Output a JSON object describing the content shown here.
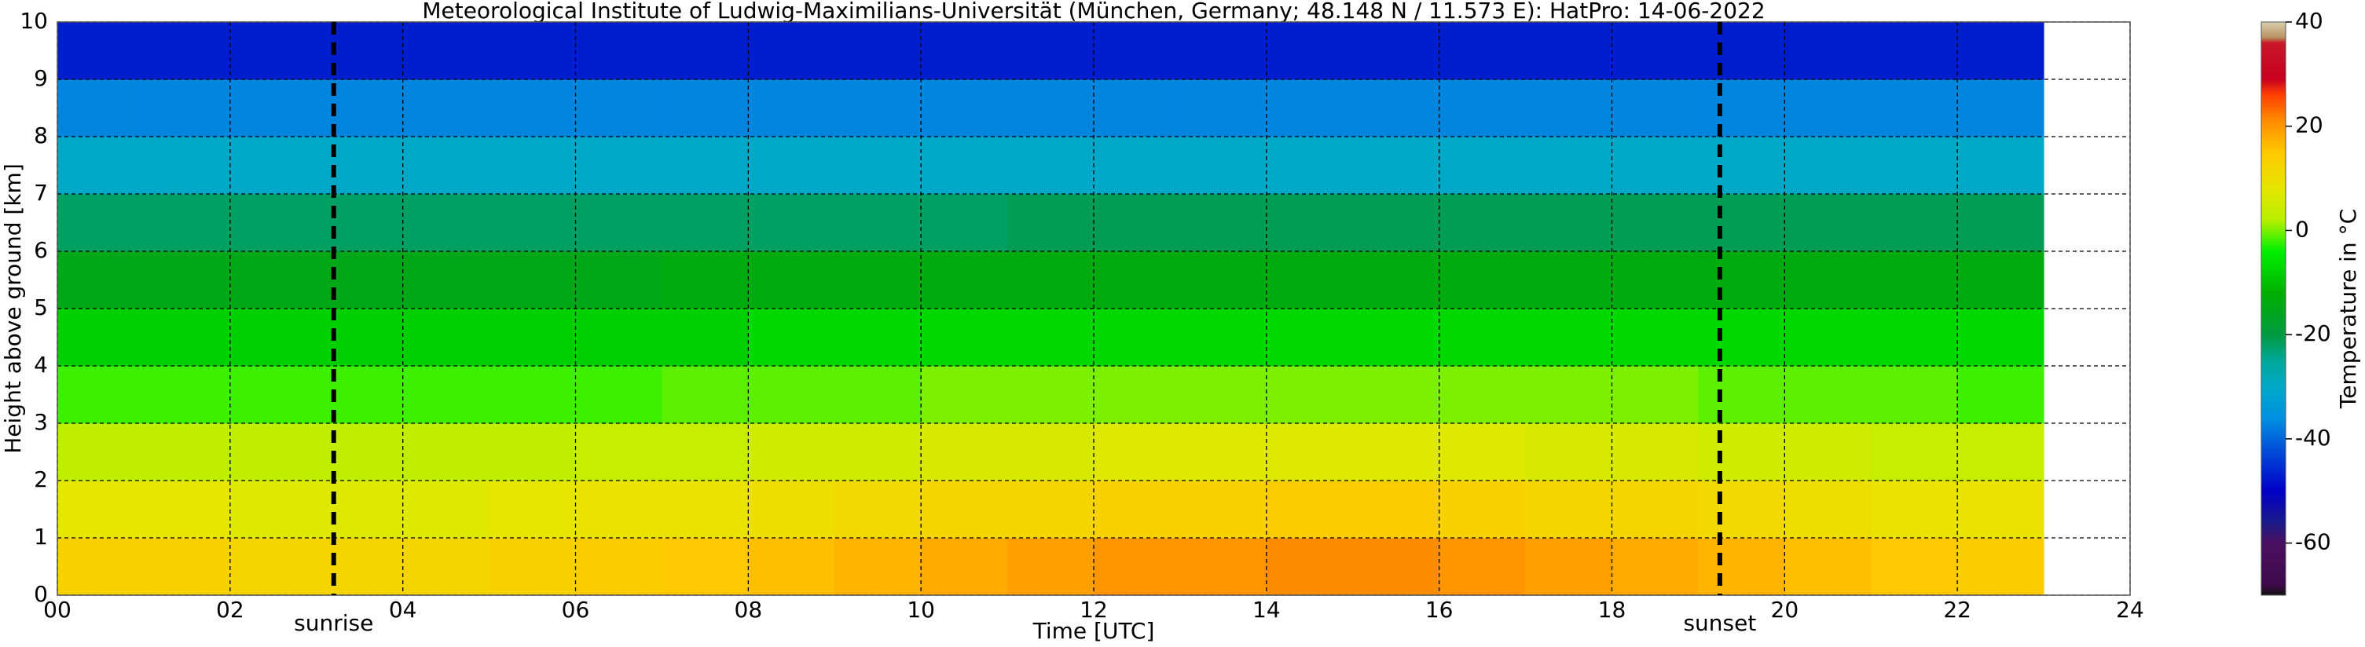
{
  "chart_data": {
    "type": "heatmap",
    "title": "Meteorological Institute of Ludwig-Maximilians-Universität (München, Germany; 48.148 N / 11.573 E):    HatPro: 14-06-2022",
    "x_label": "Time [UTC]",
    "y_label": "Height above ground [km]",
    "colorbar_label": "Temperature in °C",
    "x_edges": [
      0,
      1,
      2,
      3,
      4,
      5,
      6,
      7,
      8,
      9,
      10,
      11,
      12,
      13,
      14,
      15,
      16,
      17,
      18,
      19,
      20,
      21,
      22,
      23
    ],
    "y_edges": [
      0,
      1,
      2,
      3,
      4,
      5,
      6,
      7,
      8,
      9,
      10
    ],
    "z": [
      [
        13,
        13,
        12,
        12,
        12,
        13,
        14,
        15,
        16,
        17,
        18,
        19,
        20,
        20,
        21,
        21,
        20,
        19,
        18,
        17,
        16,
        15,
        14
      ],
      [
        8,
        8,
        7,
        7,
        7,
        8,
        9,
        9,
        10,
        11,
        12,
        12,
        13,
        13,
        14,
        14,
        13,
        12,
        12,
        11,
        10,
        9,
        9
      ],
      [
        3,
        3,
        3,
        3,
        3,
        3,
        4,
        4,
        5,
        5,
        6,
        6,
        7,
        7,
        7,
        7,
        7,
        6,
        6,
        5,
        5,
        4,
        4
      ],
      [
        -2,
        -2,
        -2,
        -2,
        -2,
        -2,
        -2,
        -1,
        -1,
        -1,
        0,
        0,
        0,
        0,
        0,
        0,
        0,
        0,
        0,
        -1,
        -1,
        -1,
        -2
      ],
      [
        -8,
        -8,
        -8,
        -8,
        -8,
        -8,
        -8,
        -8,
        -7,
        -7,
        -7,
        -7,
        -7,
        -7,
        -7,
        -7,
        -7,
        -7,
        -7,
        -7,
        -7,
        -7,
        -7
      ],
      [
        -15,
        -15,
        -15,
        -15,
        -15,
        -15,
        -15,
        -14,
        -14,
        -14,
        -14,
        -14,
        -14,
        -14,
        -14,
        -14,
        -14,
        -14,
        -14,
        -14,
        -14,
        -14,
        -14
      ],
      [
        -22,
        -22,
        -22,
        -22,
        -22,
        -22,
        -22,
        -22,
        -22,
        -22,
        -22,
        -21,
        -21,
        -21,
        -21,
        -21,
        -21,
        -21,
        -21,
        -21,
        -21,
        -21,
        -21
      ],
      [
        -30,
        -30,
        -30,
        -30,
        -30,
        -30,
        -30,
        -30,
        -30,
        -30,
        -30,
        -30,
        -30,
        -30,
        -30,
        -30,
        -30,
        -30,
        -30,
        -30,
        -30,
        -30,
        -30
      ],
      [
        -37,
        -37,
        -37,
        -37,
        -37,
        -37,
        -37,
        -37,
        -37,
        -37,
        -37,
        -37,
        -37,
        -37,
        -37,
        -37,
        -37,
        -37,
        -37,
        -37,
        -37,
        -37,
        -37
      ],
      [
        -47,
        -47,
        -47,
        -47,
        -47,
        -47,
        -47,
        -47,
        -47,
        -47,
        -47,
        -47,
        -47,
        -47,
        -47,
        -47,
        -47,
        -47,
        -47,
        -47,
        -47,
        -47,
        -47
      ]
    ],
    "xlim": [
      0,
      24
    ],
    "xticks": [
      {
        "value": 0,
        "label": "00"
      },
      {
        "value": 2,
        "label": "02"
      },
      {
        "value": 4,
        "label": "04"
      },
      {
        "value": 6,
        "label": "06"
      },
      {
        "value": 8,
        "label": "08"
      },
      10,
      12,
      14,
      16,
      18,
      20,
      22,
      24
    ],
    "ylim": [
      0,
      10
    ],
    "yticks": [
      0,
      1,
      2,
      3,
      4,
      5,
      6,
      7,
      8,
      9,
      10
    ],
    "clim": [
      -70,
      40
    ],
    "cticks": [
      -60,
      -40,
      -20,
      0,
      20,
      40
    ],
    "colorscale": [
      [
        -70,
        "#111111"
      ],
      [
        -68,
        "#3d0a4a"
      ],
      [
        -60,
        "#4a1060"
      ],
      [
        -56,
        "#1a1a8a"
      ],
      [
        -50,
        "#0000c8"
      ],
      [
        -42,
        "#0050d8"
      ],
      [
        -36,
        "#0090e0"
      ],
      [
        -30,
        "#00a8c8"
      ],
      [
        -25,
        "#00a898"
      ],
      [
        -20,
        "#009a40"
      ],
      [
        -12,
        "#00b000"
      ],
      [
        -4,
        "#00f000"
      ],
      [
        2,
        "#b8f000"
      ],
      [
        8,
        "#e6e600"
      ],
      [
        15,
        "#ffc800"
      ],
      [
        21,
        "#ff8c00"
      ],
      [
        26,
        "#ff4000"
      ],
      [
        29,
        "#c80020"
      ],
      [
        36,
        "#c81828"
      ],
      [
        37,
        "#b89060"
      ],
      [
        40,
        "#d8d0b0"
      ]
    ],
    "grid": true,
    "annotations": [
      {
        "text": "sunrise",
        "x": 3.2
      },
      {
        "text": "sunset",
        "x": 19.25
      }
    ]
  }
}
